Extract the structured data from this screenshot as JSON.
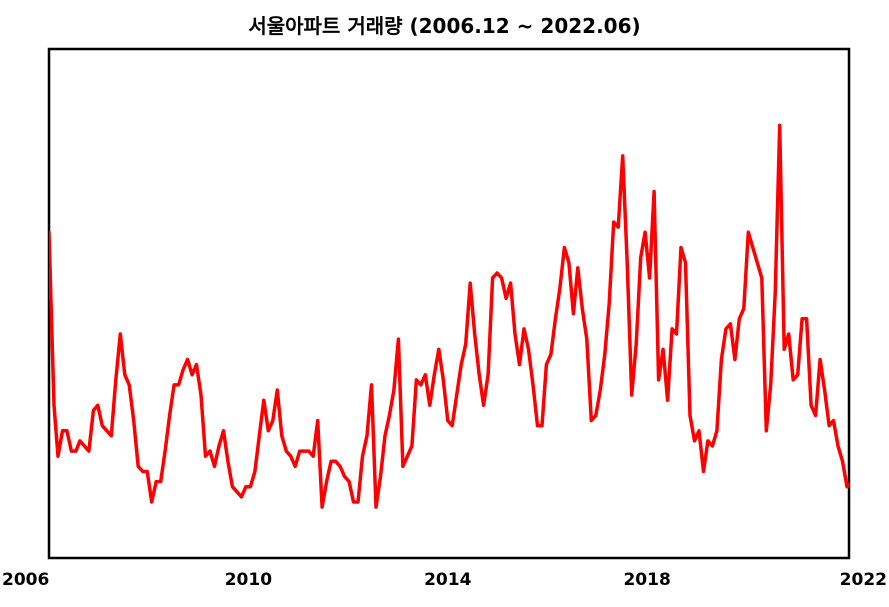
{
  "chart_data": {
    "type": "line",
    "title": "서울아파트 거래량 (2006.12 ~ 2022.06)",
    "xlabel": "",
    "ylabel": "",
    "x_ticks": [
      "2006",
      "2010",
      "2014",
      "2018",
      "2022"
    ],
    "x_range": [
      2006.0,
      2022.05
    ],
    "y_range": [
      0,
      100
    ],
    "grid": false,
    "legend": "none",
    "series": [
      {
        "color": "#ff0000",
        "values": [
          [
            2006.0,
            64
          ],
          [
            2006.1,
            30
          ],
          [
            2006.18,
            20
          ],
          [
            2006.27,
            25
          ],
          [
            2006.36,
            25
          ],
          [
            2006.45,
            21
          ],
          [
            2006.54,
            21
          ],
          [
            2006.62,
            23
          ],
          [
            2006.71,
            22
          ],
          [
            2006.8,
            21
          ],
          [
            2006.89,
            29
          ],
          [
            2006.98,
            30
          ],
          [
            2007.07,
            26
          ],
          [
            2007.16,
            25
          ],
          [
            2007.25,
            24
          ],
          [
            2007.34,
            35
          ],
          [
            2007.43,
            44
          ],
          [
            2007.52,
            36
          ],
          [
            2007.61,
            34
          ],
          [
            2007.7,
            27
          ],
          [
            2007.79,
            18
          ],
          [
            2007.88,
            17
          ],
          [
            2007.97,
            17
          ],
          [
            2008.06,
            11
          ],
          [
            2008.15,
            15
          ],
          [
            2008.24,
            15
          ],
          [
            2008.33,
            21
          ],
          [
            2008.42,
            28
          ],
          [
            2008.51,
            34
          ],
          [
            2008.6,
            34
          ],
          [
            2008.69,
            37
          ],
          [
            2008.78,
            39
          ],
          [
            2008.87,
            36
          ],
          [
            2008.96,
            38
          ],
          [
            2009.05,
            32
          ],
          [
            2009.14,
            20
          ],
          [
            2009.23,
            21
          ],
          [
            2009.32,
            18
          ],
          [
            2009.41,
            22
          ],
          [
            2009.5,
            25
          ],
          [
            2009.59,
            19
          ],
          [
            2009.68,
            14
          ],
          [
            2009.77,
            13
          ],
          [
            2009.86,
            12
          ],
          [
            2009.95,
            14
          ],
          [
            2010.04,
            14
          ],
          [
            2010.13,
            17
          ],
          [
            2010.22,
            24
          ],
          [
            2010.31,
            31
          ],
          [
            2010.4,
            25
          ],
          [
            2010.49,
            27
          ],
          [
            2010.58,
            33
          ],
          [
            2010.67,
            24
          ],
          [
            2010.76,
            21
          ],
          [
            2010.85,
            20
          ],
          [
            2010.94,
            18
          ],
          [
            2011.03,
            21
          ],
          [
            2011.12,
            21
          ],
          [
            2011.21,
            21
          ],
          [
            2011.3,
            20
          ],
          [
            2011.39,
            27
          ],
          [
            2011.48,
            10
          ],
          [
            2011.57,
            15
          ],
          [
            2011.66,
            19
          ],
          [
            2011.75,
            19
          ],
          [
            2011.84,
            18
          ],
          [
            2011.93,
            16
          ],
          [
            2012.02,
            15
          ],
          [
            2012.11,
            11
          ],
          [
            2012.2,
            11
          ],
          [
            2012.29,
            20
          ],
          [
            2012.38,
            24
          ],
          [
            2012.47,
            34
          ],
          [
            2012.56,
            10
          ],
          [
            2012.65,
            16
          ],
          [
            2012.74,
            24
          ],
          [
            2012.83,
            28
          ],
          [
            2012.92,
            33
          ],
          [
            2013.01,
            43
          ],
          [
            2013.1,
            18
          ],
          [
            2013.19,
            20
          ],
          [
            2013.28,
            22
          ],
          [
            2013.37,
            35
          ],
          [
            2013.46,
            34
          ],
          [
            2013.55,
            36
          ],
          [
            2013.64,
            30
          ],
          [
            2013.73,
            36
          ],
          [
            2013.82,
            41
          ],
          [
            2013.91,
            35
          ],
          [
            2014.0,
            27
          ],
          [
            2014.09,
            26
          ],
          [
            2014.18,
            32
          ],
          [
            2014.27,
            38
          ],
          [
            2014.36,
            42
          ],
          [
            2014.45,
            54
          ],
          [
            2014.54,
            44
          ],
          [
            2014.63,
            36
          ],
          [
            2014.72,
            30
          ],
          [
            2014.81,
            36
          ],
          [
            2014.9,
            55
          ],
          [
            2014.99,
            56
          ],
          [
            2015.08,
            55
          ],
          [
            2015.17,
            51
          ],
          [
            2015.26,
            54
          ],
          [
            2015.35,
            44
          ],
          [
            2015.44,
            38
          ],
          [
            2015.53,
            45
          ],
          [
            2015.62,
            41
          ],
          [
            2015.71,
            34
          ],
          [
            2015.8,
            26
          ],
          [
            2015.89,
            26
          ],
          [
            2015.98,
            38
          ],
          [
            2016.07,
            40
          ],
          [
            2016.16,
            47
          ],
          [
            2016.25,
            53
          ],
          [
            2016.34,
            61
          ],
          [
            2016.43,
            58
          ],
          [
            2016.52,
            48
          ],
          [
            2016.61,
            57
          ],
          [
            2016.7,
            49
          ],
          [
            2016.79,
            43
          ],
          [
            2016.88,
            27
          ],
          [
            2016.97,
            28
          ],
          [
            2017.06,
            33
          ],
          [
            2017.15,
            40
          ],
          [
            2017.24,
            50
          ],
          [
            2017.33,
            66
          ],
          [
            2017.42,
            65
          ],
          [
            2017.51,
            79
          ],
          [
            2017.6,
            58
          ],
          [
            2017.69,
            32
          ],
          [
            2017.78,
            42
          ],
          [
            2017.87,
            59
          ],
          [
            2017.96,
            64
          ],
          [
            2018.05,
            55
          ],
          [
            2018.14,
            72
          ],
          [
            2018.23,
            35
          ],
          [
            2018.32,
            41
          ],
          [
            2018.41,
            31
          ],
          [
            2018.5,
            45
          ],
          [
            2018.59,
            44
          ],
          [
            2018.68,
            61
          ],
          [
            2018.77,
            58
          ],
          [
            2018.86,
            28
          ],
          [
            2018.95,
            23
          ],
          [
            2019.04,
            25
          ],
          [
            2019.13,
            17
          ],
          [
            2019.22,
            23
          ],
          [
            2019.31,
            22
          ],
          [
            2019.4,
            25
          ],
          [
            2019.49,
            39
          ],
          [
            2019.58,
            45
          ],
          [
            2019.67,
            46
          ],
          [
            2019.76,
            39
          ],
          [
            2019.85,
            47
          ],
          [
            2019.94,
            49
          ],
          [
            2020.03,
            64
          ],
          [
            2020.12,
            61
          ],
          [
            2020.21,
            58
          ],
          [
            2020.3,
            55
          ],
          [
            2020.39,
            25
          ],
          [
            2020.48,
            34
          ],
          [
            2020.57,
            52
          ],
          [
            2020.66,
            85
          ],
          [
            2020.75,
            41
          ],
          [
            2020.84,
            44
          ],
          [
            2020.93,
            35
          ],
          [
            2021.02,
            36
          ],
          [
            2021.11,
            47
          ],
          [
            2021.2,
            47
          ],
          [
            2021.29,
            30
          ],
          [
            2021.38,
            28
          ],
          [
            2021.47,
            39
          ],
          [
            2021.56,
            33
          ],
          [
            2021.65,
            26
          ],
          [
            2021.74,
            27
          ],
          [
            2021.83,
            22
          ],
          [
            2021.92,
            19
          ],
          [
            2022.01,
            14
          ],
          [
            2022.1,
            15
          ],
          [
            2022.19,
            16
          ],
          [
            2022.28,
            15
          ],
          [
            2022.37,
            12
          ],
          [
            2022.46,
            13
          ],
          [
            2022.55,
            12
          ],
          [
            2022.64,
            17
          ],
          [
            2022.73,
            14
          ]
        ]
      }
    ]
  }
}
